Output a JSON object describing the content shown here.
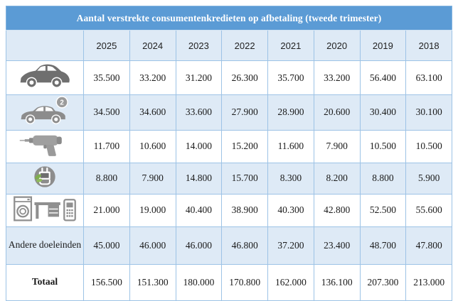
{
  "title": "Aantal verstrekte consumentenkredieten op afbetaling (tweede trimester)",
  "years": [
    "2025",
    "2024",
    "2023",
    "2022",
    "2021",
    "2020",
    "2019",
    "2018"
  ],
  "used_car_badge": "2",
  "rows": [
    {
      "icon": "new-car-icon",
      "label": "",
      "values": [
        "35.500",
        "33.200",
        "31.200",
        "26.300",
        "35.700",
        "33.200",
        "56.400",
        "63.100"
      ]
    },
    {
      "icon": "used-car-icon",
      "label": "",
      "values": [
        "34.500",
        "34.600",
        "33.600",
        "27.900",
        "28.900",
        "20.600",
        "30.400",
        "30.100"
      ]
    },
    {
      "icon": "drill-icon",
      "label": "",
      "values": [
        "11.700",
        "10.600",
        "14.000",
        "15.200",
        "11.600",
        "7.900",
        "10.500",
        "10.500"
      ]
    },
    {
      "icon": "energy-plug-icon",
      "label": "",
      "values": [
        "8.800",
        "7.900",
        "14.800",
        "15.700",
        "8.300",
        "8.200",
        "8.800",
        "5.900"
      ]
    },
    {
      "icon": "appliances-icon",
      "label": "",
      "values": [
        "21.000",
        "19.000",
        "40.400",
        "38.900",
        "40.300",
        "42.800",
        "52.500",
        "55.600"
      ]
    },
    {
      "icon": "",
      "label": "Andere doeleinden",
      "values": [
        "45.000",
        "46.000",
        "46.000",
        "46.800",
        "37.200",
        "23.400",
        "48.700",
        "47.800"
      ]
    },
    {
      "icon": "",
      "label": "Totaal",
      "bold": true,
      "values": [
        "156.500",
        "151.300",
        "180.000",
        "170.800",
        "162.000",
        "136.100",
        "207.300",
        "213.000"
      ]
    }
  ],
  "colors": {
    "header_blue": "#5b9bd5",
    "band_blue": "#deeaf6",
    "border_blue": "#9dc3e6",
    "icon_gray": "#8f8f8f",
    "leaf_green": "#7fae4e",
    "title_text": "#ffffff"
  },
  "chart_data": {
    "type": "table",
    "title": "Aantal verstrekte consumentenkredieten op afbetaling (tweede trimester)",
    "categories": [
      "2025",
      "2024",
      "2023",
      "2022",
      "2021",
      "2020",
      "2019",
      "2018"
    ],
    "series": [
      {
        "name": "new-car",
        "values": [
          35500,
          33200,
          31200,
          26300,
          35700,
          33200,
          56400,
          63100
        ]
      },
      {
        "name": "second-hand-car",
        "values": [
          34500,
          34600,
          33600,
          27900,
          28900,
          20600,
          30400,
          30100
        ]
      },
      {
        "name": "drill-tools",
        "values": [
          11700,
          10600,
          14000,
          15200,
          11600,
          7900,
          10500,
          10500
        ]
      },
      {
        "name": "energy",
        "values": [
          8800,
          7900,
          14800,
          15700,
          8300,
          8200,
          8800,
          5900
        ]
      },
      {
        "name": "appliances-furniture",
        "values": [
          21000,
          19000,
          40400,
          38900,
          40300,
          42800,
          52500,
          55600
        ]
      },
      {
        "name": "Andere doeleinden",
        "values": [
          45000,
          46000,
          46000,
          46800,
          37200,
          23400,
          48700,
          47800
        ]
      },
      {
        "name": "Totaal",
        "values": [
          156500,
          151300,
          180000,
          170800,
          162000,
          136100,
          207300,
          213000
        ]
      }
    ],
    "legend_position": "none",
    "grid": true
  }
}
